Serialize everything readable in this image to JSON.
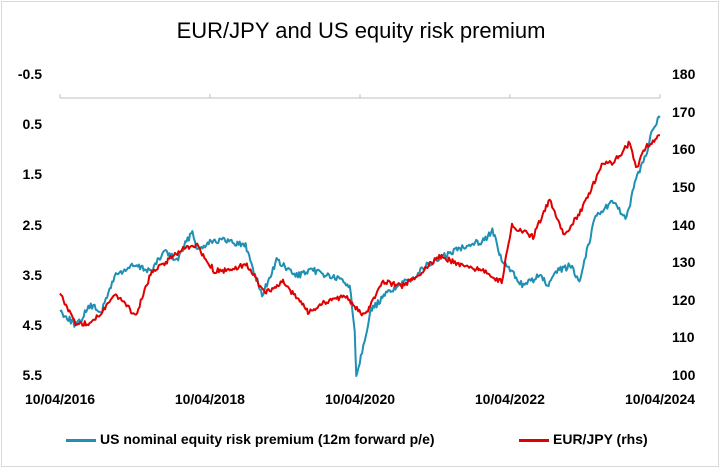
{
  "chart_data": {
    "type": "line",
    "title": "EUR/JPY and US equity risk premium",
    "x_ticks": [
      "10/04/2016",
      "10/04/2018",
      "10/04/2020",
      "10/04/2022",
      "10/04/2024"
    ],
    "y_left": {
      "ticks": [
        "-0.5",
        "0.5",
        "1.5",
        "2.5",
        "3.5",
        "4.5",
        "5.5"
      ],
      "range": [
        -0.5,
        5.5
      ],
      "inverted": true
    },
    "y_right": {
      "ticks": [
        "180",
        "170",
        "160",
        "150",
        "140",
        "130",
        "120",
        "110",
        "100"
      ],
      "range": [
        100,
        180
      ]
    },
    "grid": false,
    "legend_position": "bottom",
    "series": [
      {
        "name": "US nominal equity risk premium (12m forward p/e)",
        "axis": "left",
        "color": "#1f8fb3",
        "points": [
          [
            "2016-04-10",
            4.2
          ],
          [
            "2016-07-01",
            4.5
          ],
          [
            "2016-09-01",
            4.1
          ],
          [
            "2016-11-01",
            4.2
          ],
          [
            "2017-01-01",
            3.5
          ],
          [
            "2017-04-01",
            3.3
          ],
          [
            "2017-07-01",
            3.4
          ],
          [
            "2017-09-01",
            3.0
          ],
          [
            "2017-11-01",
            3.2
          ],
          [
            "2018-01-15",
            2.6
          ],
          [
            "2018-02-10",
            3.0
          ],
          [
            "2018-04-10",
            2.8
          ],
          [
            "2018-07-01",
            2.8
          ],
          [
            "2018-10-01",
            2.9
          ],
          [
            "2018-12-20",
            3.9
          ],
          [
            "2019-03-01",
            3.2
          ],
          [
            "2019-06-01",
            3.5
          ],
          [
            "2019-09-01",
            3.4
          ],
          [
            "2020-01-15",
            3.6
          ],
          [
            "2020-02-20",
            3.7
          ],
          [
            "2020-03-15",
            4.6
          ],
          [
            "2020-03-23",
            5.5
          ],
          [
            "2020-04-20",
            5.0
          ],
          [
            "2020-06-01",
            4.2
          ],
          [
            "2020-09-01",
            3.8
          ],
          [
            "2020-12-01",
            3.6
          ],
          [
            "2021-03-01",
            3.3
          ],
          [
            "2021-06-01",
            3.1
          ],
          [
            "2021-09-01",
            2.9
          ],
          [
            "2021-12-01",
            2.8
          ],
          [
            "2022-01-15",
            2.6
          ],
          [
            "2022-03-01",
            3.2
          ],
          [
            "2022-06-15",
            3.7
          ],
          [
            "2022-09-01",
            3.5
          ],
          [
            "2022-10-15",
            3.7
          ],
          [
            "2022-12-01",
            3.4
          ],
          [
            "2023-02-01",
            3.3
          ],
          [
            "2023-03-15",
            3.6
          ],
          [
            "2023-06-01",
            2.3
          ],
          [
            "2023-09-01",
            2.0
          ],
          [
            "2023-10-25",
            2.4
          ],
          [
            "2023-12-15",
            1.6
          ],
          [
            "2024-02-01",
            1.1
          ],
          [
            "2024-03-01",
            0.6
          ],
          [
            "2024-04-10",
            0.35
          ]
        ]
      },
      {
        "name": "EUR/JPY (rhs)",
        "axis": "right",
        "color": "#e00000",
        "points": [
          [
            "2016-04-10",
            122
          ],
          [
            "2016-06-24",
            114
          ],
          [
            "2016-09-01",
            114
          ],
          [
            "2016-11-15",
            118
          ],
          [
            "2017-01-01",
            122
          ],
          [
            "2017-04-15",
            116
          ],
          [
            "2017-07-01",
            128
          ],
          [
            "2017-09-01",
            130
          ],
          [
            "2017-12-01",
            134
          ],
          [
            "2018-02-01",
            135
          ],
          [
            "2018-05-01",
            128
          ],
          [
            "2018-08-01",
            128
          ],
          [
            "2018-10-01",
            130
          ],
          [
            "2019-01-03",
            122
          ],
          [
            "2019-04-01",
            125
          ],
          [
            "2019-08-01",
            117
          ],
          [
            "2019-11-01",
            120
          ],
          [
            "2020-02-01",
            121
          ],
          [
            "2020-05-01",
            116
          ],
          [
            "2020-08-01",
            125
          ],
          [
            "2020-11-01",
            124
          ],
          [
            "2021-01-01",
            126
          ],
          [
            "2021-05-01",
            132
          ],
          [
            "2021-09-01",
            129
          ],
          [
            "2021-12-01",
            128
          ],
          [
            "2022-03-01",
            125
          ],
          [
            "2022-04-20",
            140
          ],
          [
            "2022-08-01",
            137
          ],
          [
            "2022-10-21",
            147
          ],
          [
            "2023-01-01",
            137
          ],
          [
            "2023-04-01",
            145
          ],
          [
            "2023-07-01",
            156
          ],
          [
            "2023-09-01",
            157
          ],
          [
            "2023-11-15",
            162
          ],
          [
            "2023-12-15",
            155
          ],
          [
            "2024-02-01",
            161
          ],
          [
            "2024-04-10",
            164
          ]
        ]
      }
    ]
  }
}
